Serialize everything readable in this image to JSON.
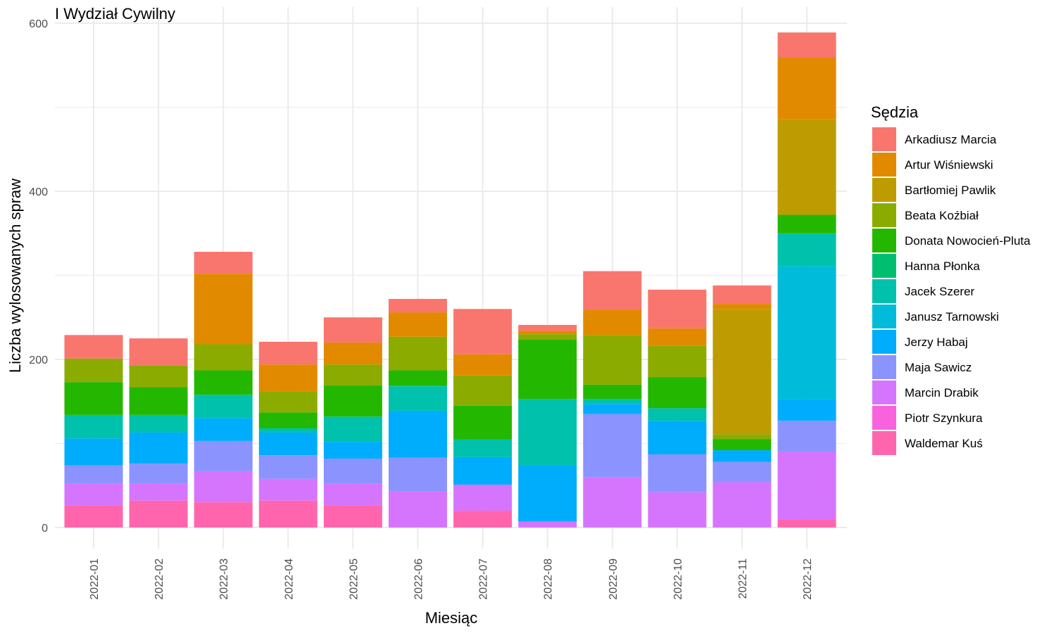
{
  "chart_data": {
    "type": "bar",
    "stacked": true,
    "title": "I Wydział Cywilny",
    "xlabel": "Miesiąc",
    "ylabel": "Liczba wylosowanych spraw",
    "ylim": [
      0,
      600
    ],
    "yticks": [
      0,
      200,
      400,
      600
    ],
    "grid": true,
    "legend_title": "Sędzia",
    "legend_position": "right",
    "categories": [
      "2022-01",
      "2022-02",
      "2022-03",
      "2022-04",
      "2022-05",
      "2022-06",
      "2022-07",
      "2022-08",
      "2022-09",
      "2022-10",
      "2022-11",
      "2022-12"
    ],
    "series": [
      {
        "name": "Arkadiusz Marcia",
        "color": "#F8766D",
        "values": [
          28,
          32,
          26,
          27,
          30,
          16,
          54,
          7,
          46,
          46,
          22,
          30
        ]
      },
      {
        "name": "Artur Wiśniewski",
        "color": "#E18A00",
        "values": [
          0,
          0,
          84,
          32,
          26,
          29,
          25,
          4,
          30,
          21,
          6,
          73
        ]
      },
      {
        "name": "Bartłomiej Pawlik",
        "color": "#BE9C00",
        "values": [
          0,
          0,
          0,
          0,
          0,
          0,
          0,
          0,
          0,
          0,
          149,
          114
        ]
      },
      {
        "name": "Beata Koźbiał",
        "color": "#8CAB00",
        "values": [
          28,
          26,
          31,
          25,
          25,
          40,
          36,
          6,
          59,
          37,
          6,
          0
        ]
      },
      {
        "name": "Donata Nowocień-Pluta",
        "color": "#24B700",
        "values": [
          39,
          33,
          29,
          19,
          37,
          18,
          40,
          71,
          17,
          37,
          13,
          22
        ]
      },
      {
        "name": "Hanna Płonka",
        "color": "#00BE70",
        "values": [
          0,
          0,
          0,
          0,
          0,
          1,
          0,
          0,
          0,
          0,
          0,
          0
        ]
      },
      {
        "name": "Jacek Szerer",
        "color": "#00C1AB",
        "values": [
          28,
          21,
          28,
          5,
          30,
          29,
          21,
          79,
          6,
          15,
          0,
          39
        ]
      },
      {
        "name": "Janusz Tarnowski",
        "color": "#00BBDA",
        "values": [
          0,
          0,
          0,
          0,
          0,
          0,
          0,
          0,
          0,
          0,
          0,
          158
        ]
      },
      {
        "name": "Jerzy Habaj",
        "color": "#00ACFC",
        "values": [
          32,
          37,
          27,
          27,
          20,
          56,
          33,
          67,
          12,
          40,
          14,
          26
        ]
      },
      {
        "name": "Maja Sawicz",
        "color": "#8B93FF",
        "values": [
          22,
          24,
          36,
          28,
          30,
          40,
          0,
          0,
          75,
          45,
          24,
          37
        ]
      },
      {
        "name": "Marcin Drabik",
        "color": "#D575FE",
        "values": [
          26,
          20,
          37,
          26,
          26,
          43,
          31,
          7,
          60,
          42,
          54,
          80
        ]
      },
      {
        "name": "Piotr Szynkura",
        "color": "#F962DD",
        "values": [
          0,
          0,
          0,
          0,
          0,
          0,
          0,
          0,
          0,
          0,
          0,
          0
        ]
      },
      {
        "name": "Waldemar Kuś",
        "color": "#FF65AC",
        "values": [
          26,
          32,
          30,
          32,
          26,
          0,
          20,
          0,
          0,
          0,
          0,
          10
        ]
      }
    ]
  }
}
